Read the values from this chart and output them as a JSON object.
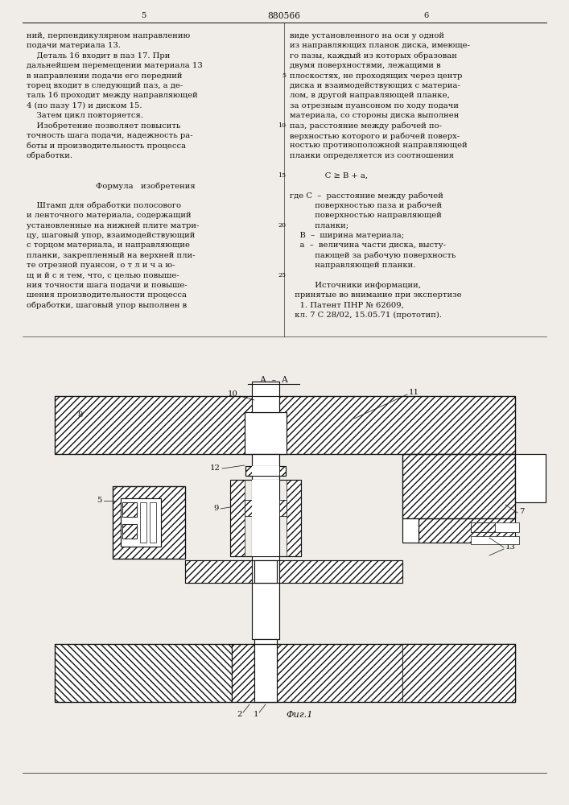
{
  "bg_color": "#f0ede8",
  "text_color": "#111111",
  "page_num_left": "5",
  "page_num_center": "880566",
  "page_num_right": "6",
  "left_col_lines": [
    "ний, перпендикулярном направлению",
    "подачи материала 13.",
    "    Деталь 16 входит в паз 17. При",
    "дальнейшем перемещении материала 13",
    "в направлении подачи его передний",
    "торец входит в следующий паз, а де-",
    "таль 16 проходит между направляющей",
    "4 (по пазу 17) и диском 15.",
    "    Затем цикл повторяется.",
    "    Изобретение позволяет повысить",
    "точность шага подачи, надежность ра-",
    "боты и производительность процесса",
    "обработки.",
    "",
    "",
    "        Формула   изобретения",
    "",
    "    Штамп для обработки полосового",
    "и ленточного материала, содержащий",
    "установленные на нижней плите матри-",
    "цу, шаговый упор, взаимодействующий",
    "с торцом материала, и направляющие",
    "планки, закрепленный на верхней пли-",
    "те отрезной пуансон, о т л и ч а ю-",
    "щ и й с я тем, что, с целью повыше-",
    "ния точности шага подачи и повыше-",
    "шения производительности процесса",
    "обработки, шаговый упор выполнен в"
  ],
  "right_col_lines": [
    "виде установленного на оси у одной",
    "из направляющих планок диска, имеюще-",
    "го пазы, каждый из которых образован",
    "двумя поверхностями, лежащими в",
    "плоскостях, не проходящих через центр",
    "диска и взаимодействующих с материа-",
    "лом, в другой направляющей планке,",
    "за отрезным пуансоном по ходу подачи",
    "материала, со стороны диска выполнен",
    "паз, расстояние между рабочей по-",
    "верхностью которого и рабочей поверх-",
    "ностью противоположной направляющей",
    "планки определяется из соотношения",
    "",
    "              С ≥ B + а,",
    "",
    "где С  –  расстояние между рабочей",
    "          поверхностью паза и рабочей",
    "          поверхностью направляющей",
    "          планки;",
    "    В  –  ширина материала;",
    "    а  –  величина части диска, высту-",
    "          пающей за рабочую поверхность",
    "          направляющей планки.",
    "",
    "          Источники информации,",
    "  принятые во внимание при экспертизе",
    "    1. Патент ПНР № 62609,",
    "  кл. 7 С 28/02, 15.05.71 (прототип)."
  ],
  "right_line_nums": [
    [
      4,
      "5"
    ],
    [
      9,
      "10"
    ],
    [
      14,
      "15"
    ],
    [
      19,
      "20"
    ],
    [
      24,
      "25"
    ]
  ],
  "fig_caption": "Фиг.1",
  "section_label": "А  –  А"
}
